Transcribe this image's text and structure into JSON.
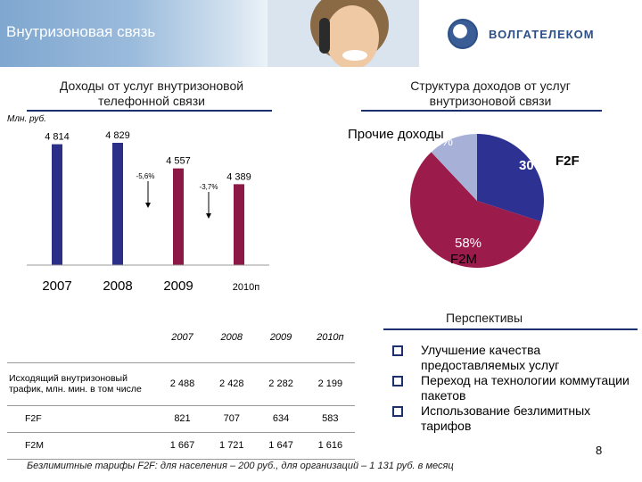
{
  "header": {
    "title": "Внутризоновая связь",
    "logo_text": "ВОЛГАТЕЛЕКОМ"
  },
  "left_section": {
    "title_line1": "Доходы от услуг внутризоновой",
    "title_line2": "телефонной связи",
    "unit": "Млн. руб."
  },
  "right_section": {
    "title_line1": "Структура доходов от услуг",
    "title_line2": "внутризоновой связи"
  },
  "chart_data": [
    {
      "type": "bar",
      "categories": [
        "2007",
        "2008",
        "2009",
        "2010п"
      ],
      "values": [
        4814,
        4829,
        4557,
        4389
      ],
      "value_labels": [
        "4 814",
        "4 829",
        "4 557",
        "4 389"
      ],
      "colors": [
        "#2b2f87",
        "#2b2f87",
        "#8b1845",
        "#8b1845"
      ],
      "annotations": [
        {
          "text": "-5,6%",
          "between": [
            "2008",
            "2009"
          ],
          "arrow": "down"
        },
        {
          "text": "-3,7%",
          "between": [
            "2009",
            "2010п"
          ],
          "arrow": "down"
        }
      ],
      "ylabel": "Млн. руб."
    },
    {
      "type": "pie",
      "slices": [
        {
          "name": "F2F",
          "value": 30,
          "label": "30%",
          "color": "#2d3192"
        },
        {
          "name": "F2M",
          "value": 58,
          "label": "58%",
          "color": "#9b1b4b"
        },
        {
          "name": "Прочие доходы",
          "value": 12,
          "label": "12%",
          "color": "#a7b1d8"
        }
      ]
    }
  ],
  "table": {
    "columns": [
      "2007",
      "2008",
      "2009",
      "2010п"
    ],
    "rows": [
      {
        "label": "Исходящий внутризоновый трафик, млн. мин. в том числе",
        "values": [
          "2 488",
          "2 428",
          "2 282",
          "2 199"
        ]
      },
      {
        "label": "F2F",
        "values": [
          "821",
          "707",
          "634",
          "583"
        ]
      },
      {
        "label": "F2M",
        "values": [
          "1 667",
          "1 721",
          "1 647",
          "1 616"
        ]
      }
    ]
  },
  "perspectives": {
    "title": "Перспективы",
    "items": [
      "Улучшение качества предоставляемых услуг",
      "Переход на технологии коммутации пакетов",
      "Использование безлимитных тарифов"
    ]
  },
  "footnote": "Безлимитные тарифы F2F: для населения – 200 руб., для организаций – 1 131 руб. в месяц",
  "page_number": "8"
}
